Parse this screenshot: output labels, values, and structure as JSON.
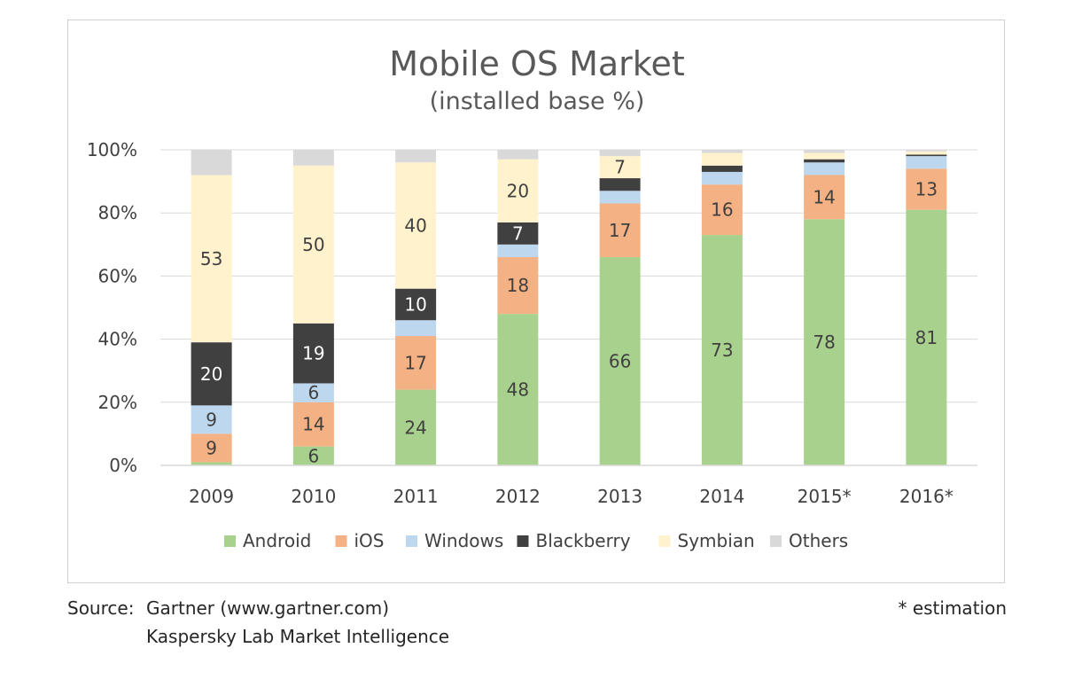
{
  "chart_data": {
    "type": "bar",
    "stacked": true,
    "title": "Mobile OS Market",
    "subtitle": "(installed base %)",
    "categories": [
      "2009",
      "2010",
      "2011",
      "2012",
      "2013",
      "2014",
      "2015*",
      "2016*"
    ],
    "ylim": [
      0,
      100
    ],
    "yticks": [
      "0%",
      "20%",
      "40%",
      "60%",
      "80%",
      "100%"
    ],
    "legend_position": "bottom",
    "series": [
      {
        "name": "Android",
        "color": "#a9d18e",
        "values": [
          1,
          6,
          24,
          48,
          66,
          73,
          78,
          81
        ],
        "labels": [
          "",
          "6",
          "24",
          "48",
          "66",
          "73",
          "78",
          "81"
        ]
      },
      {
        "name": "iOS",
        "color": "#f4b183",
        "values": [
          9,
          14,
          17,
          18,
          17,
          16,
          14,
          13
        ],
        "labels": [
          "9",
          "14",
          "17",
          "18",
          "17",
          "16",
          "14",
          "13"
        ]
      },
      {
        "name": "Windows",
        "color": "#bdd7ee",
        "values": [
          9,
          6,
          5,
          4,
          4,
          4,
          4,
          4
        ],
        "labels": [
          "9",
          "6",
          "",
          "",
          "",
          "",
          "",
          ""
        ]
      },
      {
        "name": "Blackberry",
        "color": "#404040",
        "values": [
          20,
          19,
          10,
          7,
          4,
          2,
          1,
          0.5
        ],
        "labels": [
          "20",
          "19",
          "10",
          "7",
          "",
          "",
          "",
          ""
        ]
      },
      {
        "name": "Symbian",
        "color": "#fff2cc",
        "values": [
          53,
          50,
          40,
          20,
          7,
          4,
          2,
          1
        ],
        "labels": [
          "53",
          "50",
          "40",
          "20",
          "7",
          "",
          "",
          ""
        ]
      },
      {
        "name": "Others",
        "color": "#d9d9d9",
        "values": [
          8,
          5,
          4,
          3,
          2,
          1,
          1,
          0.5
        ],
        "labels": [
          "",
          "",
          "",
          "",
          "",
          "",
          "",
          ""
        ]
      }
    ]
  },
  "footer": {
    "source_label": "Source:",
    "source_line1": "Gartner (www.gartner.com)",
    "source_line2": "Kaspersky Lab Market Intelligence",
    "note": "* estimation"
  }
}
